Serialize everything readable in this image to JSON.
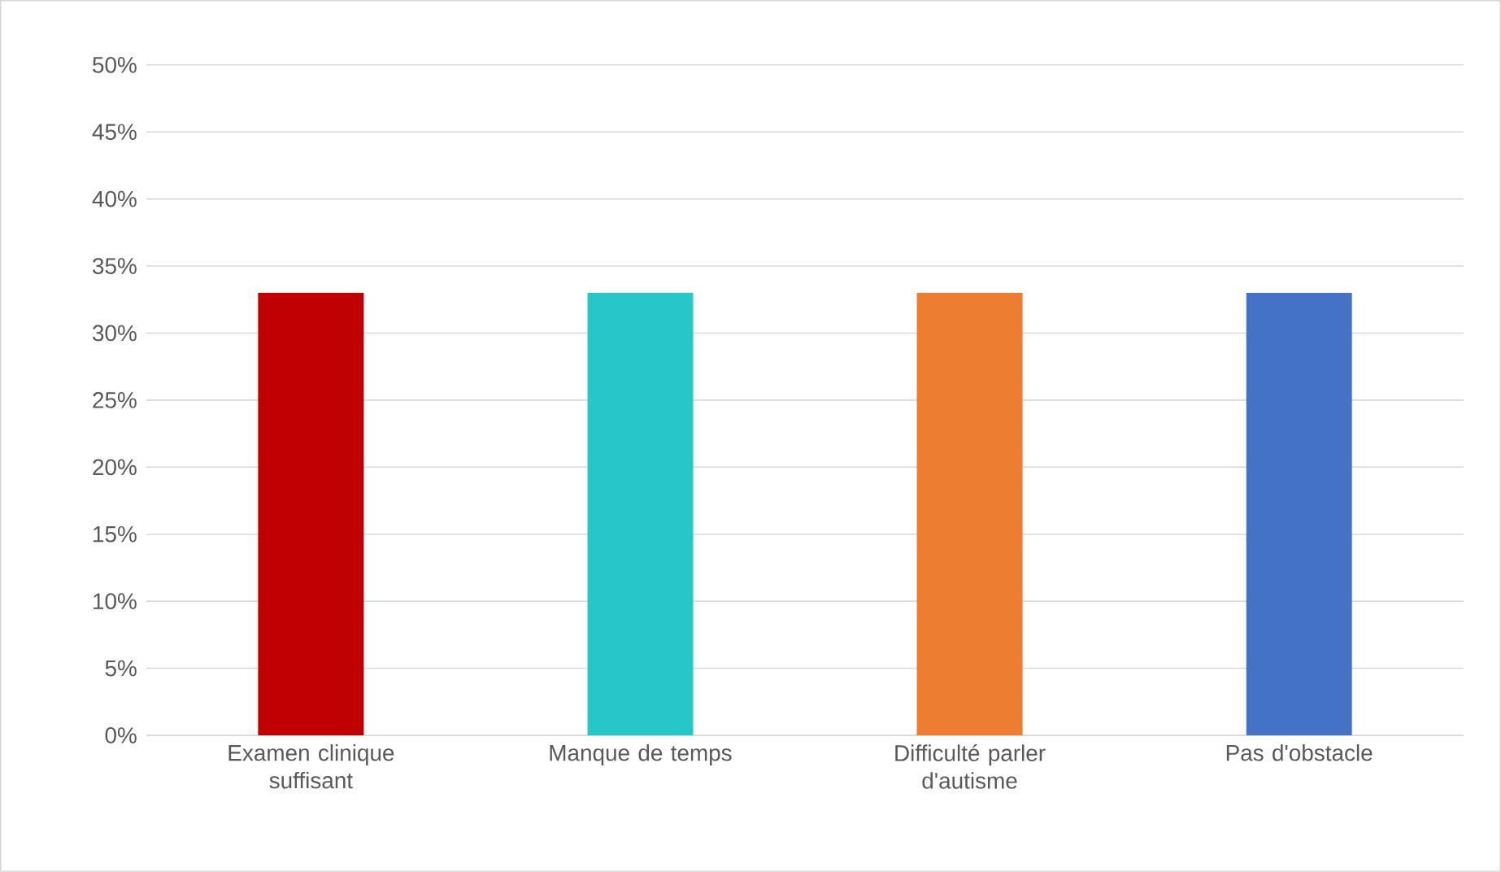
{
  "chart_data": {
    "type": "bar",
    "categories": [
      "Examen clinique suffisant",
      "Manque de temps",
      "Difficulté parler d'autisme",
      "Pas d'obstacle"
    ],
    "values": [
      33,
      33,
      33,
      33
    ],
    "colors": [
      "#c00000",
      "#27c6c9",
      "#ed7d31",
      "#4472c4"
    ],
    "ylim": [
      0,
      50
    ],
    "yticks": [
      {
        "value": 0,
        "label": "0%"
      },
      {
        "value": 5,
        "label": "5%"
      },
      {
        "value": 10,
        "label": "10%"
      },
      {
        "value": 15,
        "label": "15%"
      },
      {
        "value": 20,
        "label": "20%"
      },
      {
        "value": 25,
        "label": "25%"
      },
      {
        "value": 30,
        "label": "30%"
      },
      {
        "value": 35,
        "label": "35%"
      },
      {
        "value": 40,
        "label": "40%"
      },
      {
        "value": 45,
        "label": "45%"
      },
      {
        "value": 50,
        "label": "50%"
      }
    ],
    "grid": "y"
  }
}
